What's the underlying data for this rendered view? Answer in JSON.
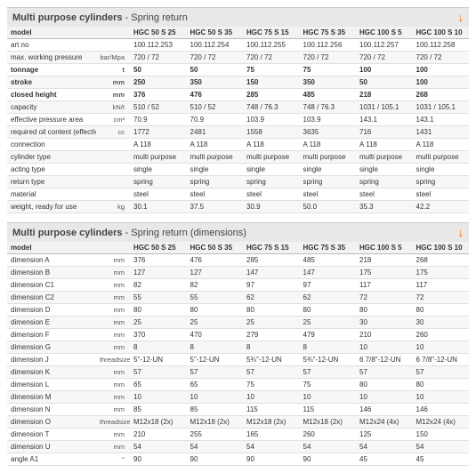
{
  "tables": [
    {
      "title_bold": "Multi purpose cylinders",
      "title_sub": " - Spring return",
      "header_label": "model",
      "columns": [
        "HGC 50 S 25",
        "HGC 50 S 35",
        "HGC 75 S 15",
        "HGC 75 S 35",
        "HGC 100 S 5",
        "HGC 100 S 10"
      ],
      "rows": [
        {
          "label": "art no",
          "unit": "",
          "bold": false,
          "vals": [
            "100.112.253",
            "100.112.254",
            "100.112.255",
            "100.112.256",
            "100.112.257",
            "100.112.258"
          ]
        },
        {
          "label": "max. working pressure",
          "unit": "bar/Mpa",
          "bold": false,
          "vals": [
            "720 / 72",
            "720 / 72",
            "720 / 72",
            "720 / 72",
            "720 / 72",
            "720 / 72"
          ]
        },
        {
          "label": "tonnage",
          "unit": "t",
          "bold": true,
          "vals": [
            "50",
            "50",
            "75",
            "75",
            "100",
            "100"
          ]
        },
        {
          "label": "stroke",
          "unit": "mm",
          "bold": true,
          "vals": [
            "250",
            "350",
            "150",
            "350",
            "50",
            "100"
          ]
        },
        {
          "label": "closed height",
          "unit": "mm",
          "bold": true,
          "vals": [
            "376",
            "476",
            "285",
            "485",
            "218",
            "268"
          ]
        },
        {
          "label": "capacity",
          "unit": "kN/t",
          "bold": false,
          "vals": [
            "510 / 52",
            "510 / 52",
            "748 / 76.3",
            "748 / 76.3",
            "1031 / 105.1",
            "1031 / 105.1"
          ]
        },
        {
          "label": "effective pressure area",
          "unit": "cm²",
          "bold": false,
          "vals": [
            "70.9",
            "70.9",
            "103.9",
            "103.9",
            "143.1",
            "143.1"
          ]
        },
        {
          "label": "required oil content (effective)",
          "unit": "cc",
          "bold": false,
          "vals": [
            "1772",
            "2481",
            "1558",
            "3635",
            "716",
            "1431"
          ]
        },
        {
          "label": "connection",
          "unit": "",
          "bold": false,
          "vals": [
            "A 118",
            "A 118",
            "A 118",
            "A 118",
            "A 118",
            "A 118"
          ]
        },
        {
          "label": "cylinder type",
          "unit": "",
          "bold": false,
          "vals": [
            "multi purpose",
            "multi purpose",
            "multi purpose",
            "multi purpose",
            "multi purpose",
            "multi purpose"
          ]
        },
        {
          "label": "acting type",
          "unit": "",
          "bold": false,
          "vals": [
            "single",
            "single",
            "single",
            "single",
            "single",
            "single"
          ]
        },
        {
          "label": "return type",
          "unit": "",
          "bold": false,
          "vals": [
            "spring",
            "spring",
            "spring",
            "spring",
            "spring",
            "spring"
          ]
        },
        {
          "label": "material",
          "unit": "",
          "bold": false,
          "vals": [
            "steel",
            "steel",
            "steel",
            "steel",
            "steel",
            "steel"
          ]
        },
        {
          "label": "weight, ready for use",
          "unit": "kg",
          "bold": false,
          "vals": [
            "30.1",
            "37.5",
            "30.9",
            "50.0",
            "35.3",
            "42.2"
          ]
        }
      ]
    },
    {
      "title_bold": "Multi purpose cylinders",
      "title_sub": " - Spring return (dimensions)",
      "header_label": "model",
      "columns": [
        "HGC 50 S 25",
        "HGC 50 S 35",
        "HGC 75 S 15",
        "HGC 75 S 35",
        "HGC 100 S 5",
        "HGC 100 S 10"
      ],
      "rows": [
        {
          "label": "dimension A",
          "unit": "mm",
          "bold": false,
          "vals": [
            "376",
            "476",
            "285",
            "485",
            "218",
            "268"
          ]
        },
        {
          "label": "dimension B",
          "unit": "mm",
          "bold": false,
          "vals": [
            "127",
            "127",
            "147",
            "147",
            "175",
            "175"
          ]
        },
        {
          "label": "dimension C1",
          "unit": "mm",
          "bold": false,
          "vals": [
            "82",
            "82",
            "97",
            "97",
            "117",
            "117"
          ]
        },
        {
          "label": "dimension C2",
          "unit": "mm",
          "bold": false,
          "vals": [
            "55",
            "55",
            "62",
            "62",
            "72",
            "72"
          ]
        },
        {
          "label": "dimension D",
          "unit": "mm",
          "bold": false,
          "vals": [
            "80",
            "80",
            "80",
            "80",
            "80",
            "80"
          ]
        },
        {
          "label": "dimension E",
          "unit": "mm",
          "bold": false,
          "vals": [
            "25",
            "25",
            "25",
            "25",
            "30",
            "30"
          ]
        },
        {
          "label": "dimension F",
          "unit": "mm",
          "bold": false,
          "vals": [
            "370",
            "470",
            "279",
            "479",
            "210",
            "260"
          ]
        },
        {
          "label": "dimension G",
          "unit": "mm",
          "bold": false,
          "vals": [
            "8",
            "8",
            "8",
            "8",
            "10",
            "10"
          ]
        },
        {
          "label": "dimension J",
          "unit": "threadsize",
          "bold": false,
          "vals": [
            "5\"-12-UN",
            "5\"-12-UN",
            "5¾\"-12-UN",
            "5¾\"-12-UN",
            "6 7/8\"-12-UN",
            "6 7/8\"-12-UN"
          ]
        },
        {
          "label": "dimension K",
          "unit": "mm",
          "bold": false,
          "vals": [
            "57",
            "57",
            "57",
            "57",
            "57",
            "57"
          ]
        },
        {
          "label": "dimension L",
          "unit": "mm",
          "bold": false,
          "vals": [
            "65",
            "65",
            "75",
            "75",
            "80",
            "80"
          ]
        },
        {
          "label": "dimension M",
          "unit": "mm",
          "bold": false,
          "vals": [
            "10",
            "10",
            "10",
            "10",
            "10",
            "10"
          ]
        },
        {
          "label": "dimension N",
          "unit": "mm",
          "bold": false,
          "vals": [
            "85",
            "85",
            "115",
            "115",
            "146",
            "146"
          ]
        },
        {
          "label": "dimension O",
          "unit": "threadsize",
          "bold": false,
          "vals": [
            "M12x18 (2x)",
            "M12x18 (2x)",
            "M12x18 (2x)",
            "M12x18 (2x)",
            "M12x24 (4x)",
            "M12x24 (4x)"
          ]
        },
        {
          "label": "dimension T",
          "unit": "mm",
          "bold": false,
          "vals": [
            "210",
            "255",
            "165",
            "260",
            "125",
            "150"
          ]
        },
        {
          "label": "dimension U",
          "unit": "mm",
          "bold": false,
          "vals": [
            "54",
            "54",
            "54",
            "54",
            "54",
            "54"
          ]
        },
        {
          "label": "angle A1",
          "unit": "°",
          "bold": false,
          "vals": [
            "90",
            "90",
            "90",
            "90",
            "45",
            "45"
          ]
        }
      ]
    }
  ]
}
